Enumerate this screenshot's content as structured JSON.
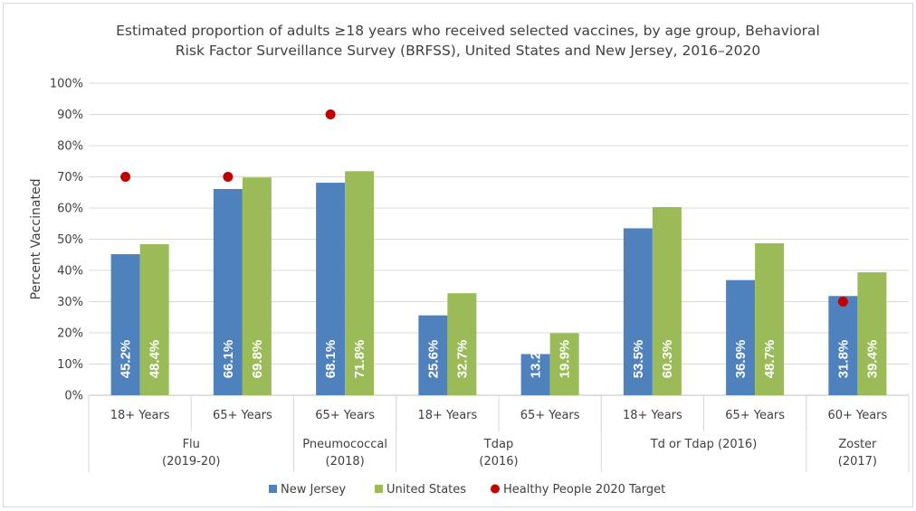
{
  "chart_data": {
    "type": "bar",
    "title_lines": [
      "Estimated proportion of adults ≥18 years who received selected vaccines, by age group, Behavioral",
      "Risk Factor Surveillance Survey (BRFSS), United States and New Jersey, 2016–2020"
    ],
    "ylabel": "Percent Vaccinated",
    "ylim": [
      0,
      100
    ],
    "y_ticks": [
      "0%",
      "10%",
      "20%",
      "30%",
      "40%",
      "50%",
      "60%",
      "70%",
      "80%",
      "90%",
      "100%"
    ],
    "grid": true,
    "categories": [
      "18+ Years",
      "65+ Years",
      "65+ Years",
      "18+ Years",
      "65+ Years",
      "18+ Years",
      "65+ Years",
      "60+ Years"
    ],
    "groups": [
      {
        "label_lines": [
          "Flu",
          "(2019-20)"
        ],
        "span": 2
      },
      {
        "label_lines": [
          "Pneumococcal",
          "(2018)"
        ],
        "span": 1
      },
      {
        "label_lines": [
          "Tdap",
          "(2016)"
        ],
        "span": 2
      },
      {
        "label_lines": [
          "Td or Tdap (2016)"
        ],
        "span": 2
      },
      {
        "label_lines": [
          "Zoster",
          "(2017)"
        ],
        "span": 1
      }
    ],
    "series": [
      {
        "name": "New Jersey",
        "color": "#4f81bd",
        "values": [
          45.2,
          66.1,
          68.1,
          25.6,
          13.2,
          53.5,
          36.9,
          31.8
        ],
        "labels": [
          "45.2%",
          "66.1%",
          "68.1%",
          "25.6%",
          "13.2%",
          "53.5%",
          "36.9%",
          "31.8%"
        ]
      },
      {
        "name": "United States",
        "color": "#9bbb59",
        "values": [
          48.4,
          69.8,
          71.8,
          32.7,
          19.9,
          60.3,
          48.7,
          39.4
        ],
        "labels": [
          "48.4%",
          "69.8%",
          "71.8%",
          "32.7%",
          "19.9%",
          "60.3%",
          "48.7%",
          "39.4%"
        ]
      }
    ],
    "targets": {
      "name": "Healthy People 2020 Target",
      "color": "#c00000",
      "values": [
        70,
        70,
        90,
        null,
        null,
        null,
        null,
        30
      ]
    },
    "legend_position": "bottom"
  }
}
